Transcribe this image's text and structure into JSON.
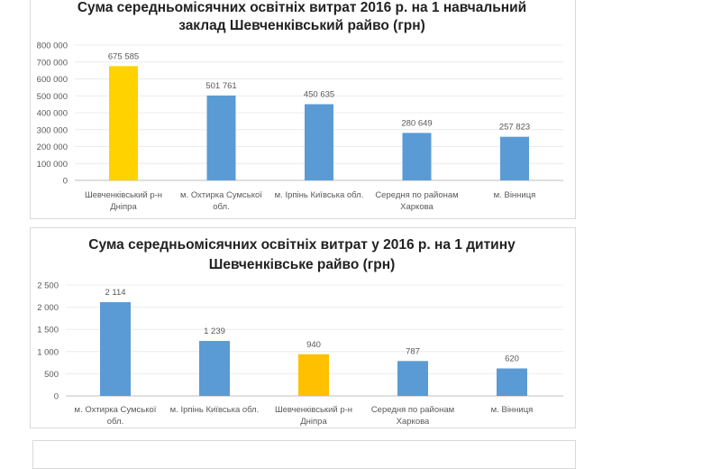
{
  "chart_data": [
    {
      "type": "bar",
      "title_lines": [
        "Сума середньомісячних освітніх витрат 2016 р. на 1 навчальний",
        "заклад Шевченківський райво (грн)"
      ],
      "categories": [
        [
          "Шевченківський р-н",
          "Дніпра"
        ],
        [
          "м. Охтирка Сумської",
          "обл."
        ],
        [
          "м. Ірпінь Київська обл."
        ],
        [
          "Середня по районам",
          "Харкова"
        ],
        [
          "м. Вінниця"
        ]
      ],
      "values": [
        675585,
        501761,
        450635,
        280649,
        257823
      ],
      "value_labels": [
        "675 585",
        "501 761",
        "450 635",
        "280 649",
        "257 823"
      ],
      "bar_colors": [
        "#ffd200",
        "#5b9bd5",
        "#5b9bd5",
        "#5b9bd5",
        "#5b9bd5"
      ],
      "yticks": [
        0,
        100000,
        200000,
        300000,
        400000,
        500000,
        600000,
        700000,
        800000
      ],
      "ytick_labels": [
        "0",
        "100 000",
        "200 000",
        "300 000",
        "400 000",
        "500 000",
        "600 000",
        "700 000",
        "800 000"
      ],
      "ylim": [
        0,
        800000
      ],
      "grid": true,
      "xlabel": "",
      "ylabel": ""
    },
    {
      "type": "bar",
      "title_lines": [
        "Сума середньомісячних освітніх витрат у 2016 р. на 1 дитину",
        "Шевченківське райво (грн)"
      ],
      "categories": [
        [
          "м. Охтирка Сумської",
          "обл."
        ],
        [
          "м. Ірпінь Київська обл."
        ],
        [
          "Шевченківський р-н",
          "Дніпра"
        ],
        [
          "Середня по районам",
          "Харкова"
        ],
        [
          "м. Вінниця"
        ]
      ],
      "values": [
        2114,
        1239,
        940,
        787,
        620
      ],
      "value_labels": [
        "2 114",
        "1 239",
        "940",
        "787",
        "620"
      ],
      "bar_colors": [
        "#5b9bd5",
        "#5b9bd5",
        "#ffc000",
        "#5b9bd5",
        "#5b9bd5"
      ],
      "yticks": [
        0,
        500,
        1000,
        1500,
        2000,
        2500
      ],
      "ytick_labels": [
        "0",
        "500",
        "1 000",
        "1 500",
        "2 000",
        "2 500"
      ],
      "ylim": [
        0,
        2500
      ],
      "grid": true,
      "xlabel": "",
      "ylabel": ""
    }
  ]
}
